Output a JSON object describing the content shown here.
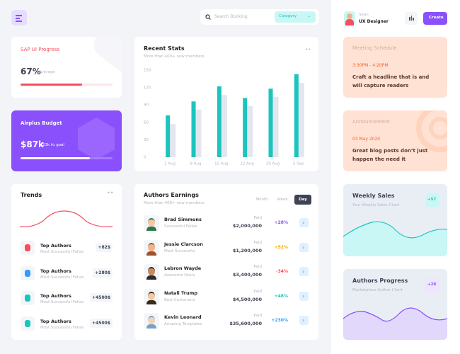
{
  "header": {
    "search_placeholder": "Search Booking",
    "category": "Category"
  },
  "user": {
    "name": "Sean",
    "role": "UX Designer",
    "create": "Create"
  },
  "progress_card": {
    "title": "SAP UI Progress",
    "progress": {
      "value": 67,
      "label": "67%"
    },
    "caption": "Average"
  },
  "budget_card": {
    "title": "Airplus Budget",
    "amount": "$87k",
    "caption": "23k to goal",
    "progress": 75
  },
  "trends": {
    "title": "Trends",
    "items": [
      {
        "title": "Top Authors",
        "subtitle": "Most Successful Fellas",
        "value": "+82$"
      },
      {
        "title": "Top Authors",
        "subtitle": "Most Successful Fellas",
        "value": "+280$"
      },
      {
        "title": "Top Authors",
        "subtitle": "Most Successful Fellas",
        "value": "+4500$"
      },
      {
        "title": "Top Authors",
        "subtitle": "Most Successful Fellas",
        "value": "+4500$"
      }
    ]
  },
  "recent_stats": {
    "type": "bar",
    "title": "Recent Stats",
    "subtitle": "More than 400+ new members",
    "categories": [
      "1 Aug",
      "8 Aug",
      "15 Aug",
      "22 Aug",
      "29 Aug",
      "5 Sep"
    ],
    "series": [
      {
        "color": "#1bc5bd",
        "values": [
          72,
          96,
          122,
          102,
          118,
          143
        ]
      },
      {
        "color": "#e4e6ef",
        "values": [
          57,
          82,
          107,
          88,
          104,
          128
        ]
      }
    ],
    "ylim": [
      0,
      150
    ],
    "yticks": [
      0,
      30,
      60,
      90,
      120,
      150
    ]
  },
  "earnings": {
    "title": "Authors Earnings",
    "subtitle": "More than 400+ new members",
    "tabs": [
      "Month",
      "Week",
      "Day"
    ],
    "rows": [
      {
        "name": "Brad Simmons",
        "subtitle": "Successful Fellas",
        "status": "Paid",
        "amount": "$2,000,000",
        "change": "+28%",
        "color": "#8950fc"
      },
      {
        "name": "Jessie Clarcson",
        "subtitle": "Most Successful",
        "status": "Paid",
        "amount": "$1,200,000",
        "change": "+52%",
        "color": "#ffa800"
      },
      {
        "name": "Lebron Wayde",
        "subtitle": "Awesome Users",
        "status": "Paid",
        "amount": "$3,400,000",
        "change": "-34%",
        "color": "#f64e60"
      },
      {
        "name": "Natali Trump",
        "subtitle": "Best Customers",
        "status": "Paid",
        "amount": "$4,500,000",
        "change": "+48%",
        "color": "#1bc5bd"
      },
      {
        "name": "Kevin Leonard",
        "subtitle": "Amazing Templates",
        "status": "Paid",
        "amount": "$35,600,000",
        "change": "+230%",
        "color": "#3699ff"
      }
    ]
  },
  "meeting": {
    "title": "Meeting Schedule",
    "time": "3:30PM - 4:20PM",
    "text": "Craft a headline that is  and will capture readers"
  },
  "announcement": {
    "title": "Announcement",
    "date": "03 May 2020",
    "text": "Great blog posts don’t just happen the need it"
  },
  "weekly_sales": {
    "title": "Weekly Sales",
    "subtitle": "Your Weekly Sales Chart",
    "badge": "+57"
  },
  "authors_progress": {
    "title": "Authors Progress",
    "subtitle": "Marketplace Author Chart",
    "badge": "+28"
  }
}
